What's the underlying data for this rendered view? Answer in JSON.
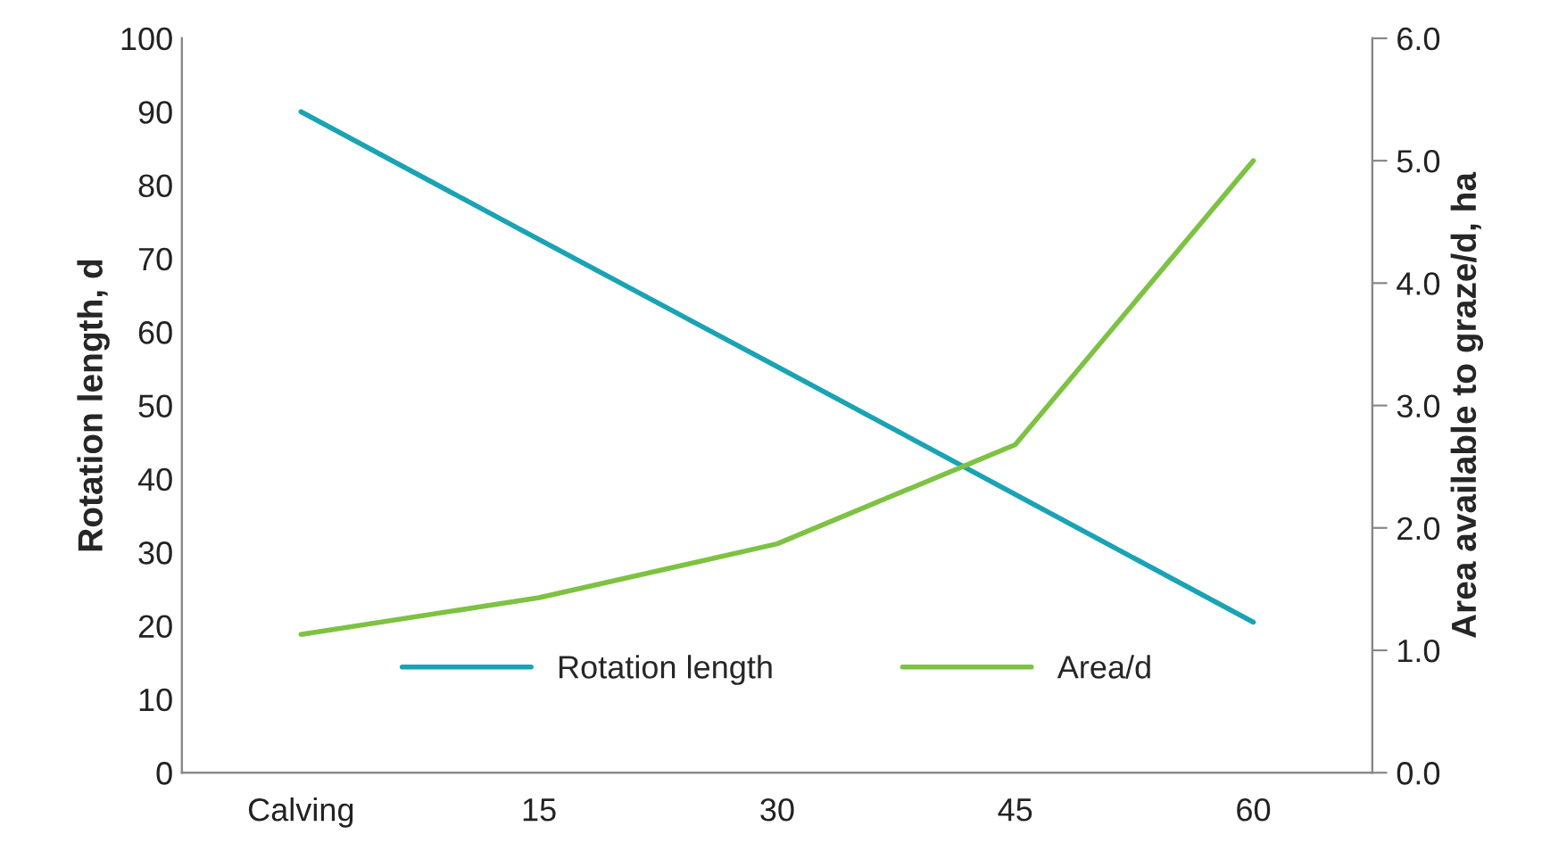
{
  "chart_data": {
    "type": "line",
    "categories": [
      "Calving",
      "15",
      "30",
      "45",
      "60"
    ],
    "ylabel": "Rotation length, d",
    "y2label": "Area available to graze/d, ha",
    "series": [
      {
        "name": "Rotation length",
        "color": "#1aa3b5",
        "values": [
          90,
          72.6,
          55.3,
          37.9,
          20.5
        ]
      },
      {
        "name": "Area/d",
        "color": "#7dc242",
        "axis": "y2",
        "values": [
          1.13,
          1.43,
          1.87,
          2.68,
          5.0
        ]
      }
    ],
    "ylim": [
      0,
      100
    ],
    "yticks": [
      0,
      10,
      20,
      30,
      40,
      50,
      60,
      70,
      80,
      90,
      100
    ],
    "y2lim": [
      0,
      6
    ],
    "y2ticks": [
      {
        "value": 0,
        "label": "0.0"
      },
      {
        "value": 1,
        "label": "1.0"
      },
      {
        "value": 2,
        "label": "2.0"
      },
      {
        "value": 3,
        "label": "3.0"
      },
      {
        "value": 4,
        "label": "4.0"
      },
      {
        "value": 5,
        "label": "5.0"
      },
      {
        "value": 6,
        "label": "6.0"
      }
    ],
    "grid": false,
    "legend": "bottom",
    "marker": "none",
    "line_style": "solid"
  }
}
